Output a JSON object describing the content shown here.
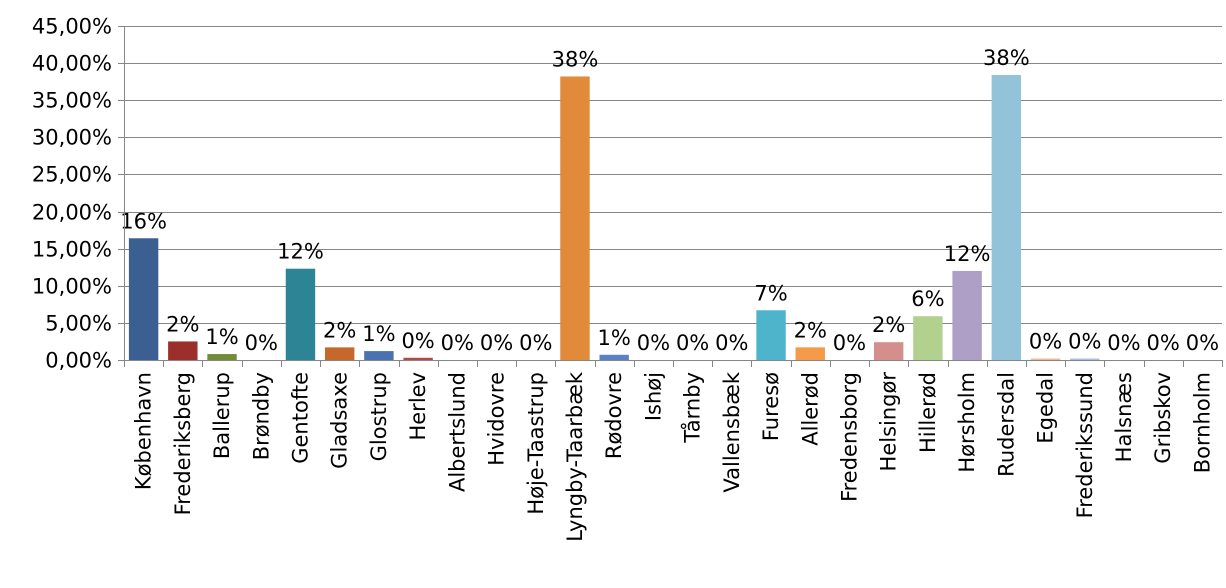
{
  "chart_data": {
    "type": "bar",
    "title": "",
    "xlabel": "",
    "ylabel": "",
    "ylim": [
      0,
      0.45
    ],
    "y_tick_step": 0.05,
    "y_tick_format": "percent-2dec-comma",
    "grid": true,
    "legend": "none",
    "categories": [
      "København",
      "Frederiksberg",
      "Ballerup",
      "Brøndby",
      "Gentofte",
      "Gladsaxe",
      "Glostrup",
      "Herlev",
      "Albertslund",
      "Hvidovre",
      "Høje-Taastrup",
      "Lyngby-Taarbæk",
      "Rødovre",
      "Ishøj",
      "Tårnby",
      "Vallensbæk",
      "Furesø",
      "Allerød",
      "Fredensborg",
      "Helsingør",
      "Hillerød",
      "Hørsholm",
      "Rudersdal",
      "Egedal",
      "Frederikssund",
      "Halsnæs",
      "Gribskov",
      "Bornholm"
    ],
    "values": [
      0.164,
      0.025,
      0.008,
      0.0,
      0.123,
      0.017,
      0.012,
      0.003,
      0.0,
      0.0,
      0.0,
      0.382,
      0.007,
      0.0,
      0.0,
      0.0,
      0.067,
      0.017,
      0.0,
      0.024,
      0.059,
      0.12,
      0.384,
      0.002,
      0.002,
      0.0,
      0.0,
      0.0
    ],
    "data_labels": [
      "16%",
      "2%",
      "1%",
      "0%",
      "12%",
      "2%",
      "1%",
      "0%",
      "0%",
      "0%",
      "0%",
      "38%",
      "1%",
      "0%",
      "0%",
      "0%",
      "7%",
      "2%",
      "0%",
      "2%",
      "6%",
      "12%",
      "38%",
      "0%",
      "0%",
      "0%",
      "0%",
      "0%"
    ],
    "bar_colors": [
      "#3b5f91",
      "#9b2f2c",
      "#748c3a",
      "#5e4a7d",
      "#2c8494",
      "#c4682b",
      "#4a72b0",
      "#b04a48",
      "#8ca552",
      "#7b6499",
      "#3f9db2",
      "#e08a3a",
      "#5a82c2",
      "#c25f5c",
      "#9cba63",
      "#8e78ad",
      "#4db4cc",
      "#f59a48",
      "#6b92d2",
      "#d48f8d",
      "#b3d18e",
      "#ae9fc7",
      "#93c3d8",
      "#f5b68c",
      "#a9bde4",
      "#e6b9b8",
      "#d0e2b8",
      "#cbc0dc"
    ]
  }
}
